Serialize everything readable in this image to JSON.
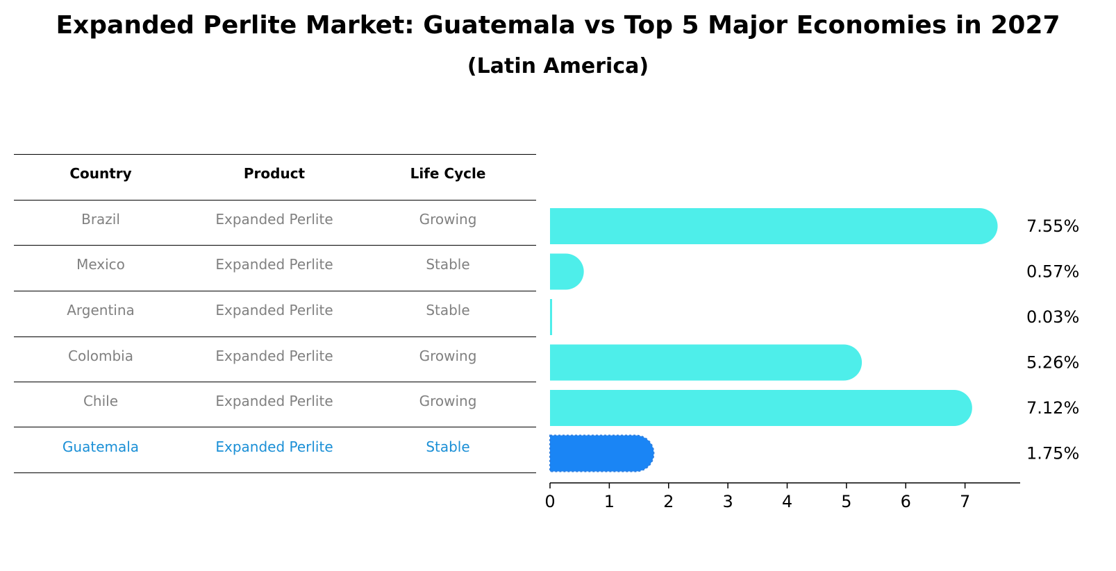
{
  "chart_data": {
    "type": "bar",
    "orientation": "horizontal",
    "title": "Expanded Perlite Market: Guatemala vs Top 5 Major Economies in 2027",
    "subtitle": "(Latin America)",
    "categories": [
      "Brazil",
      "Mexico",
      "Argentina",
      "Colombia",
      "Chile",
      "Guatemala"
    ],
    "values": [
      7.55,
      0.57,
      0.03,
      5.26,
      7.12,
      1.75
    ],
    "value_labels": [
      "7.55%",
      "0.57%",
      "0.03%",
      "5.26%",
      "7.12%",
      "1.75%"
    ],
    "highlight": "Guatemala",
    "xlim": [
      0,
      7.93
    ],
    "xticks": [
      0,
      1,
      2,
      3,
      4,
      5,
      6,
      7
    ],
    "xtick_labels": [
      "0",
      "1",
      "2",
      "3",
      "4",
      "5",
      "6",
      "7"
    ],
    "xlabel": "",
    "ylabel": "",
    "colors": {
      "bar": "#4eeeea",
      "highlight_bar": "#1a85f5",
      "highlight_text": "#1a8fd6",
      "row_text": "#808080"
    }
  },
  "table": {
    "headers": [
      "Country",
      "Product",
      "Life Cycle"
    ],
    "rows": [
      [
        "Brazil",
        "Expanded Perlite",
        "Growing"
      ],
      [
        "Mexico",
        "Expanded Perlite",
        "Stable"
      ],
      [
        "Argentina",
        "Expanded Perlite",
        "Stable"
      ],
      [
        "Colombia",
        "Expanded Perlite",
        "Growing"
      ],
      [
        "Chile",
        "Expanded Perlite",
        "Growing"
      ],
      [
        "Guatemala",
        "Expanded Perlite",
        "Stable"
      ]
    ]
  }
}
